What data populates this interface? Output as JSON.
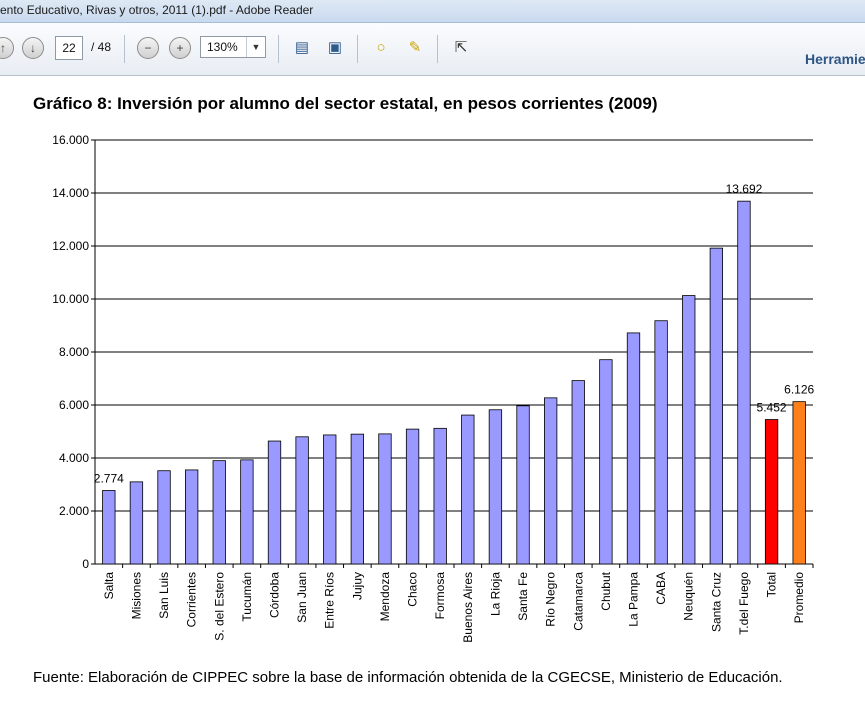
{
  "window": {
    "title": "ento Educativo, Rivas y otros, 2011 (1).pdf - Adobe Reader"
  },
  "toolbar": {
    "page_current": "22",
    "page_total": "/ 48",
    "zoom": "130%",
    "tools_label": "Herramie"
  },
  "icons": [
    "nav-up-icon",
    "nav-down-icon",
    "zoom-out-icon",
    "zoom-in-icon",
    "fit-page-icon",
    "fit-width-icon",
    "comment-icon",
    "highlight-icon",
    "fullscreen-icon"
  ],
  "document": {
    "title": "Gráfico 8: Inversión por alumno del sector estatal, en pesos corrientes (2009)",
    "source": "Fuente: Elaboración de CIPPEC sobre la base de información obtenida de la CGECSE, Ministerio de Educación."
  },
  "chart_data": {
    "type": "bar",
    "title": "Gráfico 8: Inversión por alumno del sector estatal, en pesos corrientes (2009)",
    "categories": [
      "Salta",
      "Misiones",
      "San Luis",
      "Corrientes",
      "S. del Estero",
      "Tucumán",
      "Córdoba",
      "San Juan",
      "Entre Ríos",
      "Jujuy",
      "Mendoza",
      "Chaco",
      "Formosa",
      "Buenos Aires",
      "La Rioja",
      "Santa Fe",
      "Río Negro",
      "Catamarca",
      "Chubut",
      "La Pampa",
      "CABA",
      "Neuquén",
      "Santa Cruz",
      "T.del Fuego",
      "Total",
      "Promedio"
    ],
    "values": [
      2774,
      3100,
      3520,
      3550,
      3900,
      3930,
      4640,
      4800,
      4870,
      4900,
      4910,
      5090,
      5120,
      5620,
      5820,
      5970,
      6270,
      6920,
      7710,
      8720,
      9180,
      10130,
      11920,
      13692,
      5452,
      6126
    ],
    "colors": [
      "#9999ff",
      "#9999ff",
      "#9999ff",
      "#9999ff",
      "#9999ff",
      "#9999ff",
      "#9999ff",
      "#9999ff",
      "#9999ff",
      "#9999ff",
      "#9999ff",
      "#9999ff",
      "#9999ff",
      "#9999ff",
      "#9999ff",
      "#9999ff",
      "#9999ff",
      "#9999ff",
      "#9999ff",
      "#9999ff",
      "#9999ff",
      "#9999ff",
      "#9999ff",
      "#9999ff",
      "#ff0000",
      "#ff7f1a"
    ],
    "data_labels": [
      {
        "index": 0,
        "text": "2.774"
      },
      {
        "index": 23,
        "text": "13.692"
      },
      {
        "index": 24,
        "text": "5.452"
      },
      {
        "index": 25,
        "text": "6.126"
      }
    ],
    "ylim": [
      0,
      16000
    ],
    "yticks": [
      "0",
      "2.000",
      "4.000",
      "6.000",
      "8.000",
      "10.000",
      "12.000",
      "14.000",
      "16.000"
    ],
    "grid": true,
    "xlabel": "",
    "ylabel": ""
  }
}
